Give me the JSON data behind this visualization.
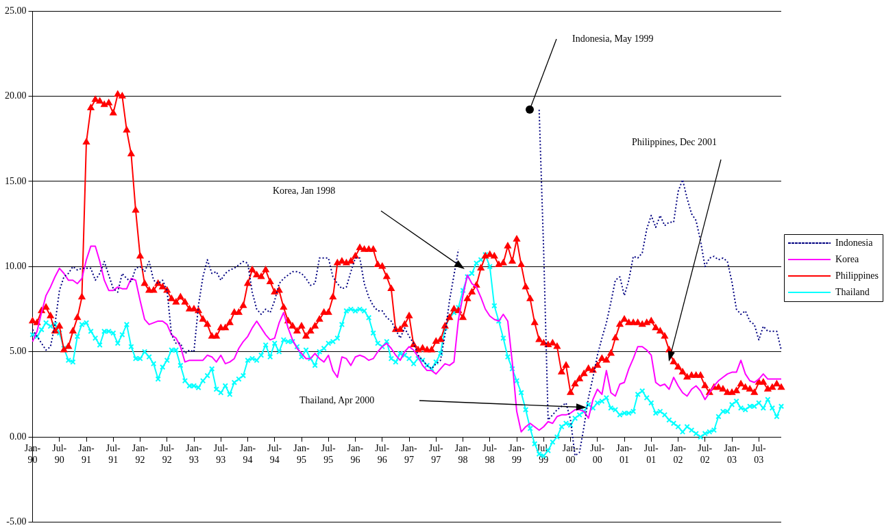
{
  "chart_data": {
    "type": "line",
    "categories": [
      "Jan-90",
      null,
      null,
      null,
      null,
      null,
      "Jul-90",
      null,
      null,
      null,
      null,
      null,
      "Jan-91",
      null,
      null,
      null,
      null,
      null,
      "Jul-91",
      null,
      null,
      null,
      null,
      null,
      "Jan-92",
      null,
      null,
      null,
      null,
      null,
      "Jul-92",
      null,
      null,
      null,
      null,
      null,
      "Jan-93",
      null,
      null,
      null,
      null,
      null,
      "Jul-93",
      null,
      null,
      null,
      null,
      null,
      "Jan-94",
      null,
      null,
      null,
      null,
      null,
      "Jul-94",
      null,
      null,
      null,
      null,
      null,
      "Jan-95",
      null,
      null,
      null,
      null,
      null,
      "Jul-95",
      null,
      null,
      null,
      null,
      null,
      "Jan-96",
      null,
      null,
      null,
      null,
      null,
      "Jul-96",
      null,
      null,
      null,
      null,
      null,
      "Jan-97",
      null,
      null,
      null,
      null,
      null,
      "Jul-97",
      null,
      null,
      null,
      null,
      null,
      "Jan-98",
      null,
      null,
      null,
      null,
      null,
      "Jul-98",
      null,
      null,
      null,
      null,
      null,
      "Jan-99",
      null,
      null,
      null,
      null,
      null,
      "Jul-99",
      null,
      null,
      null,
      null,
      null,
      "Jan-00",
      null,
      null,
      null,
      null,
      null,
      "Jul-00",
      null,
      null,
      null,
      null,
      null,
      "Jan-01",
      null,
      null,
      null,
      null,
      null,
      "Jul-01",
      null,
      null,
      null,
      null,
      null,
      "Jan-02",
      null,
      null,
      null,
      null,
      null,
      "Jul-02",
      null,
      null,
      null,
      null,
      null,
      "Jan-03",
      null,
      null,
      null,
      null,
      null,
      "Jul-03",
      null,
      null,
      null,
      null,
      null
    ],
    "series": [
      {
        "name": "Indonesia",
        "color": "#000080",
        "line_style": "dotted",
        "marker": "none",
        "values": [
          6.3,
          5.9,
          5.5,
          5.1,
          5.3,
          6.6,
          8.6,
          9.4,
          9.6,
          10.0,
          9.8,
          9.9,
          9.9,
          9.9,
          9.2,
          9.6,
          10.3,
          9.5,
          8.7,
          8.5,
          9.6,
          9.3,
          9.1,
          9.9,
          10.0,
          9.7,
          10.3,
          9.2,
          9.0,
          9.2,
          8.6,
          6.0,
          5.5,
          5.5,
          4.9,
          5.1,
          5.0,
          7.7,
          9.4,
          10.4,
          9.6,
          9.7,
          9.2,
          9.6,
          9.8,
          9.9,
          10.1,
          10.3,
          10.2,
          8.5,
          7.5,
          7.2,
          7.5,
          7.3,
          8.0,
          9.0,
          9.3,
          9.5,
          9.7,
          9.7,
          9.6,
          9.3,
          8.9,
          9.0,
          10.5,
          10.5,
          10.5,
          9.4,
          9.0,
          8.7,
          8.8,
          9.7,
          10.5,
          10.5,
          9.0,
          8.2,
          7.7,
          7.4,
          7.4,
          7.0,
          6.8,
          6.3,
          5.8,
          6.4,
          5.9,
          5.5,
          4.8,
          4.5,
          4.2,
          4.0,
          4.3,
          4.5,
          6.0,
          8.0,
          9.5,
          11.0,
          null,
          null,
          null,
          null,
          null,
          null,
          null,
          null,
          null,
          null,
          null,
          null,
          null,
          null,
          null,
          null,
          null,
          19.2,
          11.0,
          1.0,
          1.3,
          1.6,
          1.8,
          2.0,
          1.0,
          -1.1,
          -0.9,
          0.6,
          2.3,
          3.5,
          4.8,
          5.8,
          6.7,
          7.9,
          9.2,
          9.4,
          8.3,
          9.2,
          10.6,
          10.5,
          10.8,
          12.2,
          13.0,
          12.3,
          13.0,
          12.4,
          12.6,
          12.6,
          14.4,
          15.1,
          14.0,
          13.1,
          12.7,
          11.5,
          10.0,
          10.5,
          10.6,
          10.4,
          10.5,
          10.3,
          9.1,
          7.5,
          7.2,
          7.4,
          6.8,
          6.6,
          5.7,
          6.5,
          6.2,
          6.2,
          6.2,
          5.1
        ]
      },
      {
        "name": "Korea",
        "color": "#ff00ff",
        "line_style": "solid",
        "marker": "none",
        "values": [
          5.6,
          6.2,
          7.3,
          8.3,
          8.8,
          9.4,
          9.9,
          9.6,
          9.2,
          9.2,
          9.0,
          9.3,
          10.4,
          11.2,
          11.2,
          10.3,
          9.2,
          8.6,
          8.6,
          8.8,
          8.7,
          8.7,
          9.3,
          9.2,
          8.0,
          6.9,
          6.6,
          6.7,
          6.8,
          6.8,
          6.6,
          6.0,
          5.8,
          5.3,
          4.4,
          4.5,
          4.5,
          4.5,
          4.5,
          4.8,
          4.7,
          4.4,
          4.8,
          4.3,
          4.4,
          4.6,
          5.2,
          5.6,
          5.9,
          6.4,
          6.8,
          6.4,
          6.0,
          5.7,
          5.8,
          6.7,
          7.3,
          6.4,
          5.7,
          5.2,
          4.9,
          4.6,
          4.6,
          4.9,
          4.6,
          4.4,
          4.8,
          3.9,
          3.5,
          4.7,
          4.6,
          4.2,
          4.7,
          4.8,
          4.7,
          4.5,
          4.6,
          5.0,
          5.3,
          5.5,
          5.2,
          4.8,
          4.5,
          5.0,
          5.3,
          5.1,
          4.7,
          4.2,
          3.9,
          3.9,
          3.7,
          4.0,
          4.3,
          4.2,
          4.4,
          6.9,
          8.3,
          9.5,
          9.0,
          8.8,
          8.2,
          7.5,
          7.1,
          6.9,
          6.8,
          7.2,
          6.8,
          4.4,
          1.5,
          0.3,
          0.6,
          0.8,
          0.6,
          0.4,
          0.6,
          0.9,
          0.8,
          1.2,
          1.3,
          1.3,
          1.4,
          1.6,
          1.6,
          1.5,
          1.1,
          2.2,
          2.8,
          2.5,
          3.9,
          2.6,
          2.4,
          3.1,
          3.2,
          4.0,
          4.6,
          5.3,
          5.3,
          5.1,
          4.8,
          3.2,
          3.0,
          3.1,
          2.8,
          3.5,
          3.0,
          2.6,
          2.4,
          2.8,
          3.0,
          2.7,
          2.2,
          2.6,
          3.0,
          3.3,
          3.5,
          3.7,
          3.8,
          3.8,
          4.5,
          3.7,
          3.3,
          3.2,
          3.4,
          3.7,
          3.4,
          3.4,
          3.4,
          3.4
        ]
      },
      {
        "name": "Philippines",
        "color": "#ff0000",
        "line_style": "solid",
        "marker": "triangle",
        "values": [
          6.8,
          6.7,
          7.4,
          7.6,
          7.1,
          6.2,
          6.5,
          5.1,
          5.3,
          6.2,
          7.0,
          8.2,
          17.3,
          19.3,
          19.8,
          19.7,
          19.5,
          19.6,
          19.0,
          20.1,
          20.0,
          18.0,
          16.6,
          13.3,
          10.6,
          9.0,
          8.6,
          8.6,
          9.0,
          8.8,
          8.6,
          8.1,
          7.9,
          8.2,
          7.9,
          7.5,
          7.5,
          7.4,
          6.9,
          6.6,
          5.9,
          5.9,
          6.4,
          6.4,
          6.7,
          7.3,
          7.3,
          7.7,
          9.0,
          9.8,
          9.5,
          9.4,
          9.8,
          9.1,
          8.5,
          8.6,
          7.6,
          6.8,
          6.5,
          6.2,
          6.5,
          5.9,
          6.2,
          6.5,
          6.9,
          7.3,
          7.3,
          8.2,
          10.2,
          10.3,
          10.2,
          10.3,
          10.6,
          11.1,
          11.0,
          11.0,
          11.0,
          10.1,
          10.0,
          9.4,
          8.7,
          6.3,
          6.3,
          6.6,
          7.1,
          5.4,
          5.1,
          5.2,
          5.1,
          5.1,
          5.6,
          5.7,
          6.5,
          7.0,
          7.5,
          7.4,
          7.0,
          8.1,
          8.5,
          8.9,
          9.9,
          10.6,
          10.7,
          10.6,
          10.1,
          10.2,
          11.2,
          10.3,
          11.6,
          10.1,
          8.8,
          8.1,
          6.7,
          5.7,
          5.5,
          5.4,
          5.5,
          5.3,
          3.8,
          4.2,
          2.6,
          3.1,
          3.4,
          3.7,
          4.0,
          3.9,
          4.2,
          4.6,
          4.5,
          4.9,
          5.8,
          6.6,
          6.9,
          6.7,
          6.7,
          6.7,
          6.6,
          6.7,
          6.8,
          6.4,
          6.2,
          5.9,
          5.1,
          4.4,
          4.1,
          3.8,
          3.5,
          3.6,
          3.6,
          3.6,
          3.0,
          2.6,
          2.9,
          2.9,
          2.8,
          2.6,
          2.6,
          2.7,
          3.1,
          2.9,
          2.8,
          2.6,
          3.2,
          3.2,
          2.8,
          2.9,
          3.1,
          2.9
        ]
      },
      {
        "name": "Thailand",
        "color": "#00ffff",
        "line_style": "solid",
        "marker": "cross",
        "values": [
          6.0,
          5.9,
          6.3,
          6.7,
          6.5,
          6.6,
          6.1,
          5.2,
          4.5,
          4.4,
          5.9,
          6.6,
          6.7,
          6.2,
          5.8,
          5.4,
          6.2,
          6.2,
          6.1,
          5.5,
          6.0,
          6.6,
          5.3,
          4.6,
          4.6,
          5.0,
          4.7,
          4.3,
          3.4,
          4.1,
          4.5,
          5.1,
          5.1,
          4.2,
          3.3,
          3.0,
          3.0,
          2.9,
          3.3,
          3.6,
          4.0,
          2.8,
          2.6,
          3.0,
          2.5,
          3.2,
          3.4,
          3.6,
          4.5,
          4.6,
          4.5,
          4.8,
          5.4,
          4.7,
          5.5,
          5.0,
          5.7,
          5.6,
          5.6,
          5.3,
          4.7,
          5.1,
          4.6,
          4.2,
          5.0,
          5.2,
          5.5,
          5.6,
          5.8,
          6.6,
          7.4,
          7.5,
          7.4,
          7.5,
          7.4,
          7.0,
          6.1,
          5.5,
          5.3,
          5.6,
          4.6,
          4.4,
          4.9,
          4.8,
          4.6,
          4.3,
          4.6,
          4.5,
          4.2,
          4.0,
          4.4,
          4.9,
          6.4,
          7.0,
          7.3,
          7.6,
          8.6,
          9.4,
          9.6,
          10.2,
          10.4,
          10.7,
          10.0,
          7.7,
          6.8,
          5.8,
          4.7,
          4.0,
          3.3,
          2.6,
          1.6,
          0.5,
          -0.4,
          -1.0,
          -1.1,
          -0.8,
          -0.3,
          0.0,
          0.6,
          0.8,
          0.7,
          1.1,
          1.3,
          1.5,
          1.9,
          1.7,
          2.0,
          2.1,
          2.3,
          1.7,
          1.6,
          1.3,
          1.4,
          1.4,
          1.5,
          2.5,
          2.7,
          2.3,
          2.0,
          1.4,
          1.5,
          1.3,
          1.0,
          0.8,
          0.6,
          0.3,
          0.6,
          0.4,
          0.2,
          0.0,
          0.2,
          0.3,
          0.4,
          1.2,
          1.5,
          1.5,
          1.9,
          2.1,
          1.7,
          1.6,
          1.8,
          1.8,
          2.0,
          1.7,
          2.2,
          1.7,
          1.2,
          1.8
        ]
      }
    ],
    "ylim": [
      -5,
      25
    ],
    "yticks": [
      {
        "value": -5,
        "label": "-5.00"
      },
      {
        "value": 0,
        "label": "0.00"
      },
      {
        "value": 5,
        "label": "5.00"
      },
      {
        "value": 10,
        "label": "10.00"
      },
      {
        "value": 15,
        "label": "15.00"
      },
      {
        "value": 20,
        "label": "20.00"
      },
      {
        "value": 25,
        "label": "25.00"
      }
    ],
    "grid": "y",
    "legend": "right",
    "annotations": [
      "Indonesia, May 1999",
      "Philippines, Dec 2001",
      "Korea, Jan 1998",
      "Thailand, Apr 2000"
    ]
  }
}
